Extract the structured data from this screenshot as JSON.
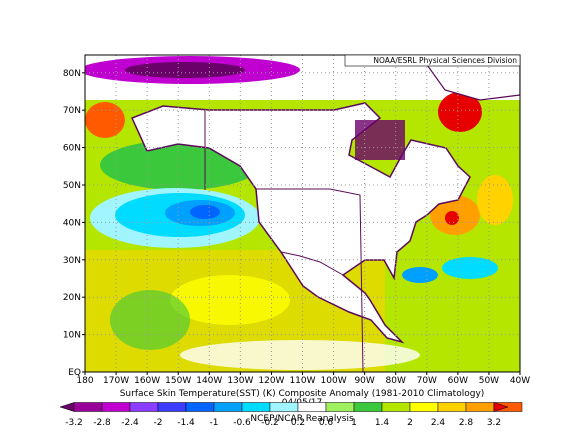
{
  "source": "NOAA/ESRL Physical Sciences Division",
  "title": "Surface Skin Temperature(SST) (K) Composite Anomaly (1981-2010 Climatology)",
  "date": "04/05/17",
  "credit": "NCEP/NCAR Reanalysis",
  "axes": {
    "lat_labels": [
      "EQ",
      "10N",
      "20N",
      "30N",
      "40N",
      "50N",
      "60N",
      "70N",
      "80N"
    ],
    "lon_labels": [
      "180",
      "170W",
      "160W",
      "150W",
      "140W",
      "130W",
      "120W",
      "110W",
      "100W",
      "90W",
      "80W",
      "70W",
      "60W",
      "50W",
      "40W"
    ]
  },
  "colorbar": {
    "labels": [
      "-3.2",
      "-2.8",
      "-2.4",
      "-2",
      "-1.4",
      "-1",
      "-0.6",
      "-0.2",
      "0.2",
      "0.6",
      "1",
      "1.4",
      "2",
      "2.4",
      "2.8",
      "3.2"
    ],
    "colors": [
      "#6a006a",
      "#9a009a",
      "#c000d0",
      "#8a3cff",
      "#3c3cff",
      "#0064ff",
      "#00a0ff",
      "#00dcff",
      "#a0f5ff",
      "#ffffff",
      "#a0f060",
      "#3cc83c",
      "#b4e600",
      "#ffff00",
      "#ffd200",
      "#ffa000",
      "#ff5a00",
      "#e60000"
    ]
  }
}
